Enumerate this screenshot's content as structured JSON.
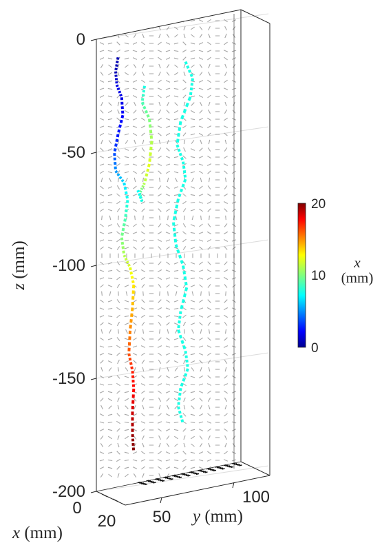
{
  "chart_data": {
    "type": "scatter",
    "view": "3d",
    "background": "velocity vector field (gray arrows, periodic vortex cells)",
    "z_axis": {
      "label": "z (mm)",
      "ticks": [
        "0",
        "-50",
        "-100",
        "-150",
        "-200"
      ],
      "range": [
        -200,
        0
      ]
    },
    "x_axis": {
      "label": "x (mm)",
      "ticks": [
        "0",
        "20"
      ],
      "range": [
        0,
        20
      ]
    },
    "y_axis": {
      "label": "y (mm)",
      "ticks": [
        "50",
        "100"
      ],
      "range": [
        0,
        120
      ]
    },
    "colorbar": {
      "label_var": "x",
      "label_unit": "(mm)",
      "ticks": [
        "0",
        "10",
        "20"
      ],
      "range": [
        0,
        20
      ],
      "colormap": "jet"
    },
    "series": [
      {
        "points": [
          {
            "y": 18,
            "z": -10,
            "x": 1
          },
          {
            "y": 16,
            "z": -16,
            "x": 1
          },
          {
            "y": 17,
            "z": -22,
            "x": 2
          },
          {
            "y": 21,
            "z": -28,
            "x": 2
          },
          {
            "y": 22,
            "z": -36,
            "x": 2.5
          },
          {
            "y": 18,
            "z": -44,
            "x": 3
          },
          {
            "y": 15,
            "z": -52,
            "x": 4
          },
          {
            "y": 16,
            "z": -60,
            "x": 5.5
          },
          {
            "y": 23,
            "z": -66,
            "x": 7
          },
          {
            "y": 26,
            "z": -74,
            "x": 8
          },
          {
            "y": 24,
            "z": -82,
            "x": 9
          },
          {
            "y": 21,
            "z": -90,
            "x": 10
          },
          {
            "y": 23,
            "z": -98,
            "x": 11
          },
          {
            "y": 28,
            "z": -104,
            "x": 12
          },
          {
            "y": 31,
            "z": -112,
            "x": 13
          },
          {
            "y": 30,
            "z": -122,
            "x": 14
          },
          {
            "y": 28,
            "z": -132,
            "x": 15
          },
          {
            "y": 27,
            "z": -142,
            "x": 16
          },
          {
            "y": 30,
            "z": -150,
            "x": 17
          },
          {
            "y": 31,
            "z": -158,
            "x": 17.5
          },
          {
            "y": 30,
            "z": -168,
            "x": 18.5
          },
          {
            "y": 30,
            "z": -178,
            "x": 19.5
          },
          {
            "y": 31,
            "z": -186,
            "x": 20
          }
        ]
      },
      {
        "points": [
          {
            "y": 74,
            "z": -18,
            "x": 8
          },
          {
            "y": 80,
            "z": -26,
            "x": 8
          },
          {
            "y": 78,
            "z": -34,
            "x": 8
          },
          {
            "y": 70,
            "z": -44,
            "x": 8
          },
          {
            "y": 67,
            "z": -54,
            "x": 8
          },
          {
            "y": 72,
            "z": -62,
            "x": 8
          },
          {
            "y": 74,
            "z": -70,
            "x": 8
          },
          {
            "y": 68,
            "z": -78,
            "x": 8
          },
          {
            "y": 64,
            "z": -88,
            "x": 8
          },
          {
            "y": 66,
            "z": -98,
            "x": 8
          },
          {
            "y": 72,
            "z": -108,
            "x": 8
          },
          {
            "y": 75,
            "z": -118,
            "x": 8
          },
          {
            "y": 70,
            "z": -128,
            "x": 8
          },
          {
            "y": 68,
            "z": -136,
            "x": 8
          },
          {
            "y": 74,
            "z": -146,
            "x": 8
          },
          {
            "y": 76,
            "z": -154,
            "x": 8
          },
          {
            "y": 70,
            "z": -162,
            "x": 8
          },
          {
            "y": 68,
            "z": -170,
            "x": 8
          },
          {
            "y": 72,
            "z": -178,
            "x": 8
          }
        ]
      },
      {
        "points": [
          {
            "y": 40,
            "z": -25,
            "x": 8
          },
          {
            "y": 38,
            "z": -32,
            "x": 9
          },
          {
            "y": 44,
            "z": -40,
            "x": 10
          },
          {
            "y": 46,
            "z": -50,
            "x": 11
          },
          {
            "y": 44,
            "z": -60,
            "x": 12
          },
          {
            "y": 40,
            "z": -68,
            "x": 11
          },
          {
            "y": 36,
            "z": -72,
            "x": 9
          },
          {
            "y": 38,
            "z": -76,
            "x": 8
          },
          {
            "y": 34,
            "z": -70,
            "x": 7.5
          }
        ]
      }
    ]
  }
}
